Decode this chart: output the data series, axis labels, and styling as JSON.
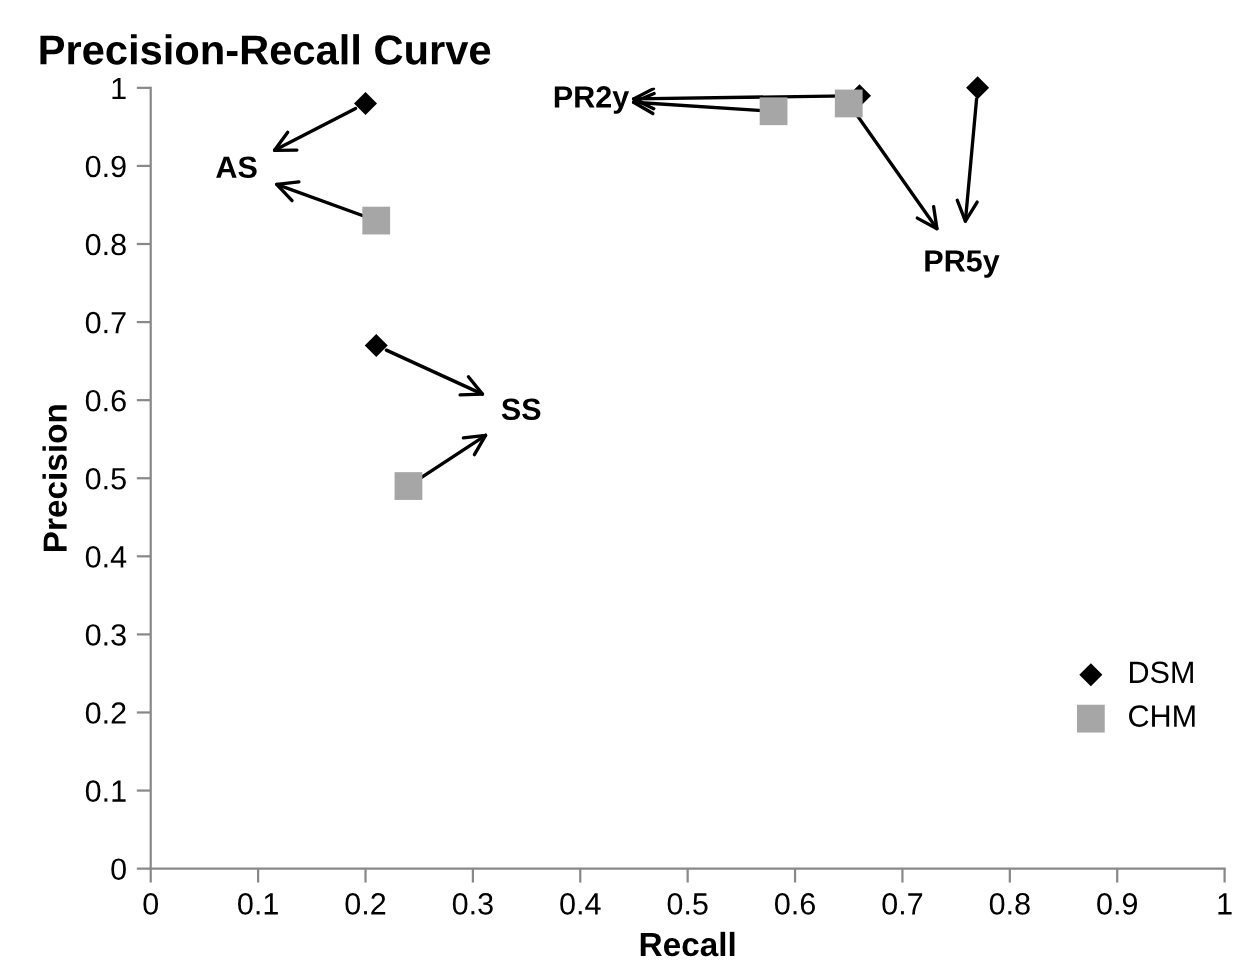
{
  "chart_data": {
    "type": "scatter",
    "title": "Precision-Recall Curve",
    "xlabel": "Recall",
    "ylabel": "Precision",
    "series": [
      {
        "name": "DSM",
        "color": "#000000",
        "marker": "diamond",
        "x": [
          0.2,
          0.66,
          0.77,
          0.21
        ],
        "values": [
          0.98,
          0.99,
          1.0,
          0.67
        ]
      },
      {
        "name": "CHM",
        "color": "#a6a6a6",
        "marker": "square",
        "x": [
          0.21,
          0.58,
          0.65,
          0.24
        ],
        "values": [
          0.83,
          0.97,
          0.98,
          0.49
        ]
      }
    ],
    "annotations": [
      {
        "text": "AS",
        "x": 0.2,
        "y": 0.98
      },
      {
        "text": "PR2y",
        "x": 0.66,
        "y": 0.99
      },
      {
        "text": "PR5y",
        "x": 0.77,
        "y": 1.0
      },
      {
        "text": "SS",
        "x": 0.21,
        "y": 0.67
      }
    ],
    "xlim": [
      0,
      1
    ],
    "xticks": [
      0,
      0.1,
      0.2,
      0.3,
      0.4,
      0.5,
      0.6,
      0.7,
      0.8,
      0.9,
      1
    ],
    "ylim": [
      0,
      1
    ],
    "yticks": [
      0,
      0.1,
      0.2,
      0.3,
      0.4,
      0.5,
      0.6,
      0.7,
      0.8,
      0.9,
      1
    ],
    "grid": false,
    "legend": "right"
  }
}
